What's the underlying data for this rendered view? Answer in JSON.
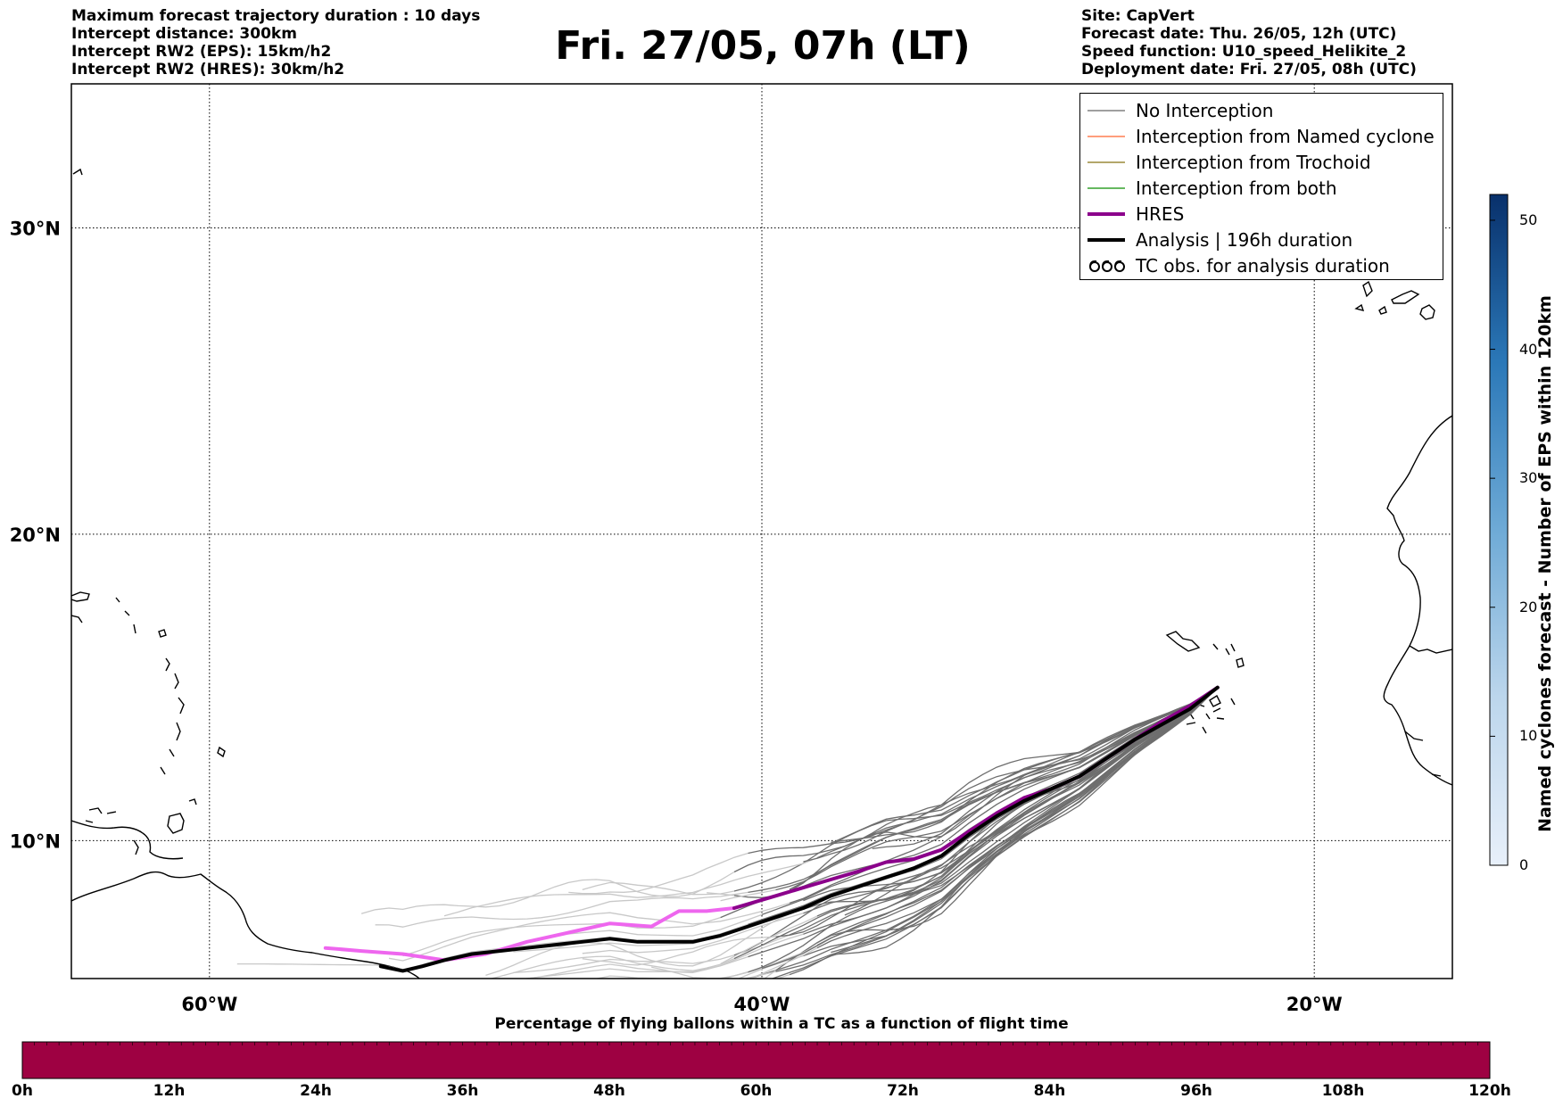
{
  "header_left": [
    "Maximum forecast trajectory duration : 10 days",
    "Intercept distance: 300km",
    "Intercept RW2 (EPS):  15km/h2",
    "Intercept RW2 (HRES): 30km/h2"
  ],
  "title": "Fri. 27/05, 07h (LT)",
  "header_right": [
    "Site: CapVert",
    "Forecast date: Thu. 26/05, 12h (UTC)",
    "Speed function: U10_speed_Helikite_2",
    "Deployment date: Fri. 27/05, 08h (UTC)"
  ],
  "map": {
    "lon_range": [
      -65,
      -15
    ],
    "lat_range": [
      5.5,
      34.7
    ],
    "lat_labels": [
      {
        "value": 30,
        "text": "30°N"
      },
      {
        "value": 20,
        "text": "20°N"
      },
      {
        "value": 10,
        "text": "10°N"
      }
    ],
    "lon_labels": [
      {
        "value": -60,
        "text": "60°W"
      },
      {
        "value": -40,
        "text": "40°W"
      },
      {
        "value": -20,
        "text": "20°W"
      }
    ],
    "launch_site": {
      "lon": -23.5,
      "lat": 15.0
    },
    "hres_track": [
      [
        -23.5,
        15.0
      ],
      [
        -24.5,
        14.4
      ],
      [
        -25.5,
        13.9
      ],
      [
        -26.5,
        13.3
      ],
      [
        -27.5,
        12.7
      ],
      [
        -28.5,
        12.1
      ],
      [
        -29.5,
        11.7
      ],
      [
        -30.5,
        11.4
      ],
      [
        -31.5,
        10.9
      ],
      [
        -32.5,
        10.3
      ],
      [
        -33.5,
        9.7
      ],
      [
        -34.5,
        9.4
      ],
      [
        -35.5,
        9.3
      ],
      [
        -36.5,
        9.0
      ],
      [
        -38.0,
        8.6
      ],
      [
        -39.5,
        8.2
      ],
      [
        -41.0,
        7.8
      ],
      [
        -42.0,
        7.7
      ],
      [
        -43.0,
        7.7
      ],
      [
        -44.0,
        7.2
      ],
      [
        -45.5,
        7.3
      ],
      [
        -47.0,
        7.0
      ],
      [
        -48.5,
        6.7
      ],
      [
        -50.0,
        6.3
      ],
      [
        -51.5,
        6.1
      ],
      [
        -53.0,
        6.3
      ],
      [
        -54.5,
        6.4
      ],
      [
        -55.8,
        6.5
      ]
    ],
    "analysis_track": [
      [
        -23.5,
        15.0
      ],
      [
        -24.5,
        14.3
      ],
      [
        -25.5,
        13.8
      ],
      [
        -26.5,
        13.3
      ],
      [
        -27.5,
        12.7
      ],
      [
        -28.5,
        12.1
      ],
      [
        -29.5,
        11.7
      ],
      [
        -30.5,
        11.3
      ],
      [
        -31.5,
        10.8
      ],
      [
        -32.5,
        10.2
      ],
      [
        -33.5,
        9.5
      ],
      [
        -34.5,
        9.1
      ],
      [
        -35.5,
        8.8
      ],
      [
        -36.5,
        8.5
      ],
      [
        -37.5,
        8.2
      ],
      [
        -38.5,
        7.8
      ],
      [
        -39.5,
        7.5
      ],
      [
        -40.5,
        7.2
      ],
      [
        -41.5,
        6.9
      ],
      [
        -42.5,
        6.7
      ],
      [
        -43.5,
        6.7
      ],
      [
        -44.5,
        6.7
      ],
      [
        -45.5,
        6.8
      ],
      [
        -46.5,
        6.7
      ],
      [
        -47.5,
        6.6
      ],
      [
        -48.5,
        6.5
      ],
      [
        -49.5,
        6.4
      ],
      [
        -50.5,
        6.3
      ],
      [
        -51.5,
        6.1
      ],
      [
        -52.3,
        5.9
      ],
      [
        -53.0,
        5.75
      ],
      [
        -53.8,
        5.9
      ]
    ],
    "colors": {
      "no_interception": "#808080",
      "named_cyclone": "#ff7f50",
      "trochoid": "#9a8a3a",
      "both": "#33a02c",
      "hres": "#8b008b",
      "hres_light": "#ee66ee",
      "analysis": "#000000"
    }
  },
  "legend": [
    {
      "label": "No Interception",
      "style": "thin",
      "color": "#808080"
    },
    {
      "label": "Interception from Named cyclone",
      "style": "thin",
      "color": "#ff7f50"
    },
    {
      "label": "Interception from Trochoid",
      "style": "thin",
      "color": "#9a8a3a"
    },
    {
      "label": "Interception from both",
      "style": "thin",
      "color": "#33a02c"
    },
    {
      "label": "HRES",
      "style": "thick",
      "color": "#8b008b"
    },
    {
      "label": "Analysis | 196h duration",
      "style": "thick",
      "color": "#000000"
    },
    {
      "label": "TC obs. for analysis duration",
      "style": "tc-symbol",
      "color": "#000000"
    }
  ],
  "colorbar_right": {
    "title": "Named cyclones forecast - Number of EPS within 120km",
    "min": 0,
    "max": 52,
    "ticks": [
      "0",
      "10",
      "20",
      "30",
      "40",
      "50"
    ],
    "color_low": "#e6eef8",
    "color_high": "#08306b"
  },
  "colorbar_bottom": {
    "title": "Percentage of flying ballons within a TC as a function of flight time",
    "ticks": [
      "0h",
      "12h",
      "24h",
      "36h",
      "48h",
      "60h",
      "72h",
      "84h",
      "96h",
      "108h",
      "120h"
    ],
    "color": "#9e0142"
  }
}
